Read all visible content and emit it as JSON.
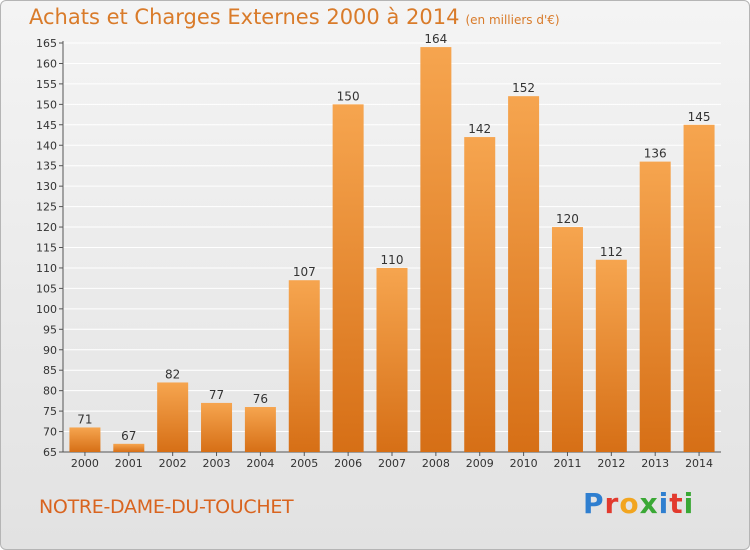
{
  "title": "Achats et Charges Externes 2000 à 2014",
  "subtitle": "(en milliers d'€)",
  "city": "NOTRE-DAME-DU-TOUCHET",
  "logo": {
    "text": "Proxiti",
    "colors": [
      "#2f7fd0",
      "#e23a2e",
      "#f2a51f",
      "#3aa835",
      "#2f7fd0",
      "#e23a2e",
      "#3aa835"
    ]
  },
  "colors": {
    "bar_light": "#f6a54f",
    "bar_dark": "#d66f16",
    "title": "#d97b2a",
    "grid": "#ffffff"
  },
  "chart_data": {
    "type": "bar",
    "title": "Achats et Charges Externes 2000 à 2014",
    "subtitle": "(en milliers d'€)",
    "xlabel": "",
    "ylabel": "",
    "categories": [
      "2000",
      "2001",
      "2002",
      "2003",
      "2004",
      "2005",
      "2006",
      "2007",
      "2008",
      "2009",
      "2010",
      "2011",
      "2012",
      "2013",
      "2014"
    ],
    "values": [
      71,
      67,
      82,
      77,
      76,
      107,
      150,
      110,
      164,
      142,
      152,
      120,
      112,
      136,
      145
    ],
    "ylim": [
      65,
      165
    ],
    "yticks": [
      65,
      70,
      75,
      80,
      85,
      90,
      95,
      100,
      105,
      110,
      115,
      120,
      125,
      130,
      135,
      140,
      145,
      150,
      155,
      160,
      165
    ],
    "grid": true,
    "data_labels": true
  }
}
